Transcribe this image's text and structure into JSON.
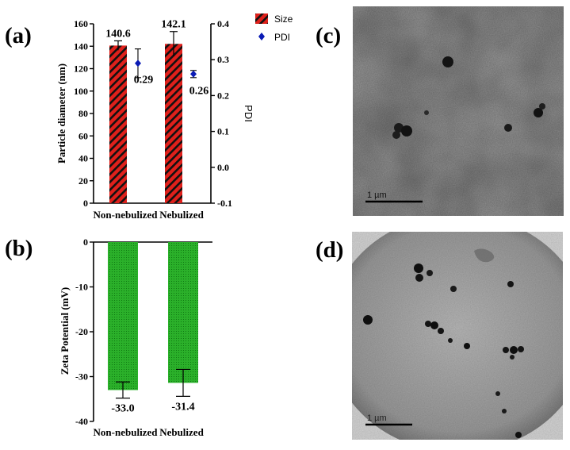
{
  "panels": {
    "a": "(a)",
    "b": "(b)",
    "c": "(c)",
    "d": "(d)"
  },
  "chart_data": [
    {
      "id": "a",
      "type": "bar",
      "categories": [
        "Non-nebulized",
        "Nebulized"
      ],
      "ylabel": "Particle diameter (nm)",
      "ylabel_right": "PDI",
      "ylim": [
        0,
        160
      ],
      "yticks": [
        0,
        20,
        40,
        60,
        80,
        100,
        120,
        140,
        160
      ],
      "y2lim": [
        -0.1,
        0.4
      ],
      "y2ticks": [
        "0.4",
        "0.3",
        "0.2",
        "0.1",
        "0.0",
        "-0.1"
      ],
      "series": [
        {
          "name": "Size",
          "axis": "left",
          "values": [
            140.6,
            142.1
          ],
          "errors": [
            4.2,
            11
          ],
          "labels": [
            "140.6",
            "142.1"
          ],
          "color": "#e0201b",
          "pattern": "red-black diagonal hatch"
        },
        {
          "name": "PDI",
          "axis": "right",
          "values": [
            0.29,
            0.26
          ],
          "errors": [
            0.04,
            0.01
          ],
          "labels": [
            "0.29",
            "0.26"
          ],
          "color": "#0a1bb5",
          "marker": "diamond"
        }
      ],
      "legend": "top-right, outside plot"
    },
    {
      "id": "b",
      "type": "bar",
      "categories": [
        "Non-nebulized",
        "Nebulized"
      ],
      "ylabel": "Zeta Potential (mV)",
      "ylim": [
        -40,
        0
      ],
      "yticks": [
        0,
        -10,
        -20,
        -30,
        -40
      ],
      "series": [
        {
          "values": [
            -33.0,
            -31.4
          ],
          "errors": [
            1.8,
            3.0
          ],
          "labels": [
            "-33.0",
            "-31.4"
          ],
          "color": "#21a81f",
          "pattern": "fine dotted green"
        }
      ]
    }
  ],
  "images": {
    "c": {
      "scale_bar": "1 µm",
      "description_icon": "tem-micrograph-icon"
    },
    "d": {
      "scale_bar": "1 µm",
      "description_icon": "tem-micrograph-icon"
    }
  }
}
